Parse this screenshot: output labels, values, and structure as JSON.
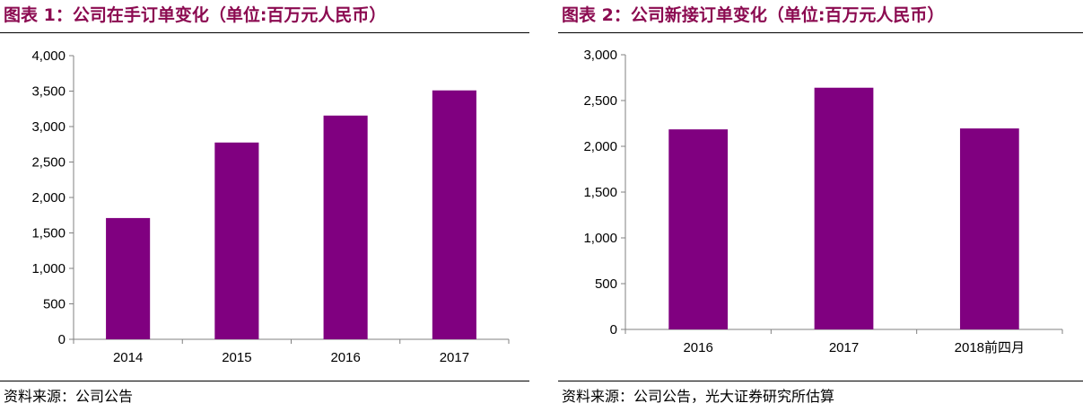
{
  "chart_data": [
    {
      "type": "bar",
      "title": "图表 1：公司在手订单变化（单位:百万元人民币）",
      "categories": [
        "2014",
        "2015",
        "2016",
        "2017"
      ],
      "values": [
        1710,
        2775,
        3155,
        3510
      ],
      "ylim": [
        0,
        4000
      ],
      "yticks": [
        0,
        500,
        1000,
        1500,
        2000,
        2500,
        3000,
        3500,
        4000
      ],
      "ytick_labels": [
        "0",
        "500",
        "1,000",
        "1,500",
        "2,000",
        "2,500",
        "3,000",
        "3,500",
        "4,000"
      ],
      "bar_color": "#800080",
      "source": "资料来源：公司公告"
    },
    {
      "type": "bar",
      "title": "图表 2：公司新接订单变化（单位:百万元人民币）",
      "categories": [
        "2016",
        "2017",
        "2018前四月"
      ],
      "values": [
        2185,
        2640,
        2195
      ],
      "ylim": [
        0,
        3000
      ],
      "yticks": [
        0,
        500,
        1000,
        1500,
        2000,
        2500,
        3000
      ],
      "ytick_labels": [
        "0",
        "500",
        "1,000",
        "1,500",
        "2,000",
        "2,500",
        "3,000"
      ],
      "bar_color": "#800080",
      "source": "资料来源：公司公告，光大证券研究所估算"
    }
  ]
}
